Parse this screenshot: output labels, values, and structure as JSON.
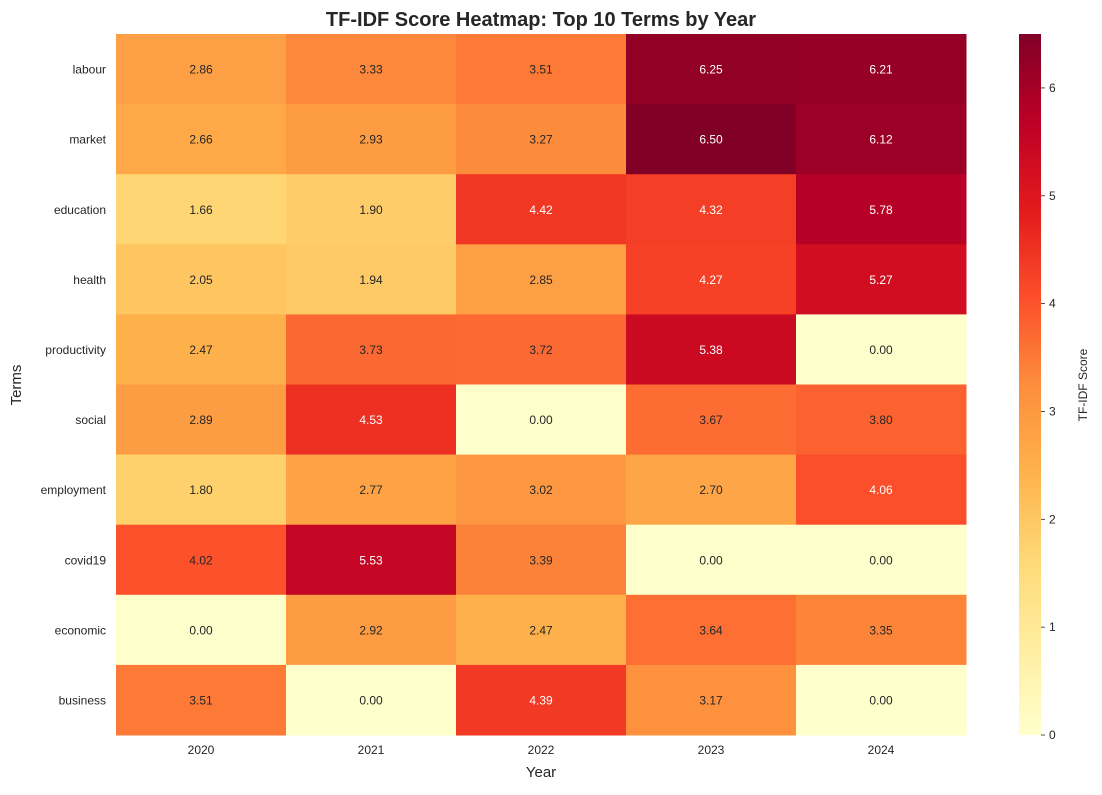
{
  "chart_data": {
    "type": "heatmap",
    "title": "TF-IDF Score Heatmap: Top 10 Terms by Year",
    "xlabel": "Year",
    "ylabel": "Terms",
    "x_categories": [
      "2020",
      "2021",
      "2022",
      "2023",
      "2024"
    ],
    "y_categories": [
      "labour",
      "market",
      "education",
      "health",
      "productivity",
      "social",
      "employment",
      "covid19",
      "economic",
      "business"
    ],
    "values": [
      [
        2.86,
        3.33,
        3.51,
        6.25,
        6.21
      ],
      [
        2.66,
        2.93,
        3.27,
        6.5,
        6.12
      ],
      [
        1.66,
        1.9,
        4.42,
        4.32,
        5.78
      ],
      [
        2.05,
        1.94,
        2.85,
        4.27,
        5.27
      ],
      [
        2.47,
        3.73,
        3.72,
        5.38,
        0.0
      ],
      [
        2.89,
        4.53,
        0.0,
        3.67,
        3.8
      ],
      [
        1.8,
        2.77,
        3.02,
        2.7,
        4.06
      ],
      [
        4.02,
        5.53,
        3.39,
        0.0,
        0.0
      ],
      [
        0.0,
        2.92,
        2.47,
        3.64,
        3.35
      ],
      [
        3.51,
        0.0,
        4.39,
        3.17,
        0.0
      ]
    ],
    "colorbar": {
      "label": "TF-IDF Score",
      "range": [
        0,
        6.5
      ],
      "ticks": [
        "0",
        "1",
        "2",
        "3",
        "4",
        "5",
        "6"
      ],
      "colormap": "YlOrRd",
      "colors": [
        "#ffffcc",
        "#ffeda0",
        "#fed976",
        "#feb24c",
        "#fd8d3c",
        "#fc4e2a",
        "#e31a1c",
        "#bd0026",
        "#800026"
      ]
    },
    "cell_label_format": "2 decimals",
    "grid": false,
    "legend": "colorbar-right"
  }
}
